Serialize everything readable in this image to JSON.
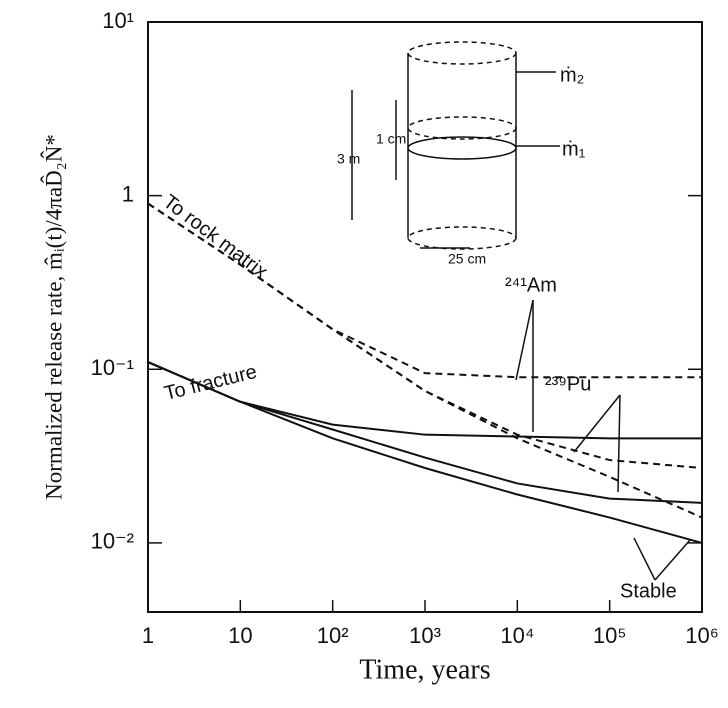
{
  "chart_data": {
    "type": "line",
    "x_label": "Time, years",
    "y_label": "Normalized release rate, m̂ᵢ(t)/4πaD̂₂N̂*",
    "log_x": true,
    "log_y": true,
    "xlim": [
      1,
      1000000
    ],
    "ylim": [
      0.004,
      10
    ],
    "xticks": [
      1,
      10,
      {
        "value": 100,
        "label": "10²"
      },
      {
        "value": 1000,
        "label": "10³"
      },
      {
        "value": 10000,
        "label": "10⁴"
      },
      {
        "value": 100000,
        "label": "10⁵"
      },
      {
        "value": 1000000,
        "label": "10⁶"
      }
    ],
    "yticks": [
      {
        "value": 10,
        "label": "10¹"
      },
      1,
      {
        "value": 0.1,
        "label": "10⁻¹"
      },
      {
        "value": 0.01,
        "label": "10⁻²"
      }
    ],
    "x": [
      1,
      10,
      100,
      1000,
      10000,
      100000,
      1000000
    ],
    "series": [
      {
        "color": "#111111",
        "style": "dashed",
        "values": [
          0.9,
          0.4,
          0.17,
          0.095,
          0.09,
          0.09,
          0.09
        ]
      },
      {
        "color": "#111111",
        "style": "dashed",
        "values": [
          0.9,
          0.4,
          0.17,
          0.075,
          0.042,
          0.03,
          0.027
        ]
      },
      {
        "color": "#111111",
        "style": "dashed",
        "values": [
          0.9,
          0.4,
          0.17,
          0.075,
          0.04,
          0.024,
          0.014
        ]
      },
      {
        "color": "#111111",
        "style": "solid",
        "values": [
          0.11,
          0.065,
          0.048,
          0.042,
          0.041,
          0.04,
          0.04
        ]
      },
      {
        "color": "#111111",
        "style": "solid",
        "values": [
          0.11,
          0.065,
          0.045,
          0.031,
          0.022,
          0.018,
          0.017
        ]
      },
      {
        "color": "#111111",
        "style": "solid",
        "values": [
          0.11,
          0.065,
          0.04,
          0.027,
          0.019,
          0.014,
          0.01
        ]
      }
    ],
    "annotations": [
      "To rock matrix",
      "To fracture",
      "²⁴¹Am",
      "²³⁹Pu",
      "Stable",
      "3 m",
      "1 cm",
      "25 cm",
      "ṁ₂",
      "ṁ₁"
    ]
  }
}
